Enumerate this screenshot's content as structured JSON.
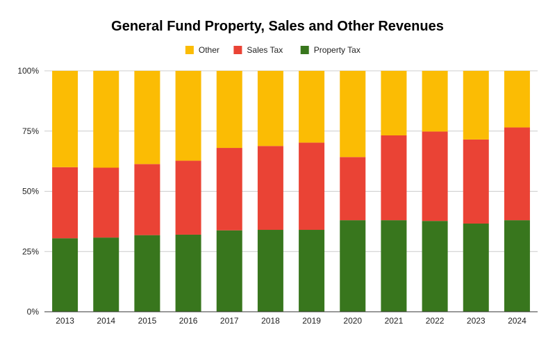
{
  "chart_data": {
    "type": "bar",
    "stacked": true,
    "normalized": true,
    "title": "General Fund Property, Sales and Other Revenues",
    "xlabel": "",
    "ylabel": "",
    "categories": [
      "2013",
      "2014",
      "2015",
      "2016",
      "2017",
      "2018",
      "2019",
      "2020",
      "2021",
      "2022",
      "2023",
      "2024"
    ],
    "series": [
      {
        "name": "Property Tax",
        "color": "#38761d",
        "values": [
          30.5,
          30.8,
          31.8,
          32.0,
          33.8,
          34.0,
          34.0,
          38.0,
          38.0,
          37.7,
          36.6,
          38.0
        ]
      },
      {
        "name": "Sales Tax",
        "color": "#ea4335",
        "values": [
          29.5,
          29.0,
          29.5,
          30.7,
          34.2,
          34.8,
          36.2,
          26.2,
          35.2,
          37.1,
          34.9,
          38.5
        ]
      },
      {
        "name": "Other",
        "color": "#fbbc04",
        "values": [
          40.0,
          40.2,
          38.7,
          37.3,
          32.0,
          31.2,
          29.8,
          35.8,
          26.8,
          25.2,
          28.5,
          23.5
        ]
      }
    ],
    "ylim": [
      0,
      100
    ],
    "yticks": [
      "0%",
      "25%",
      "50%",
      "75%",
      "100%"
    ],
    "ytick_values": [
      0,
      25,
      50,
      75,
      100
    ],
    "grid": true,
    "legend": {
      "placement": "top-center",
      "order": [
        "Other",
        "Sales Tax",
        "Property Tax"
      ]
    }
  }
}
